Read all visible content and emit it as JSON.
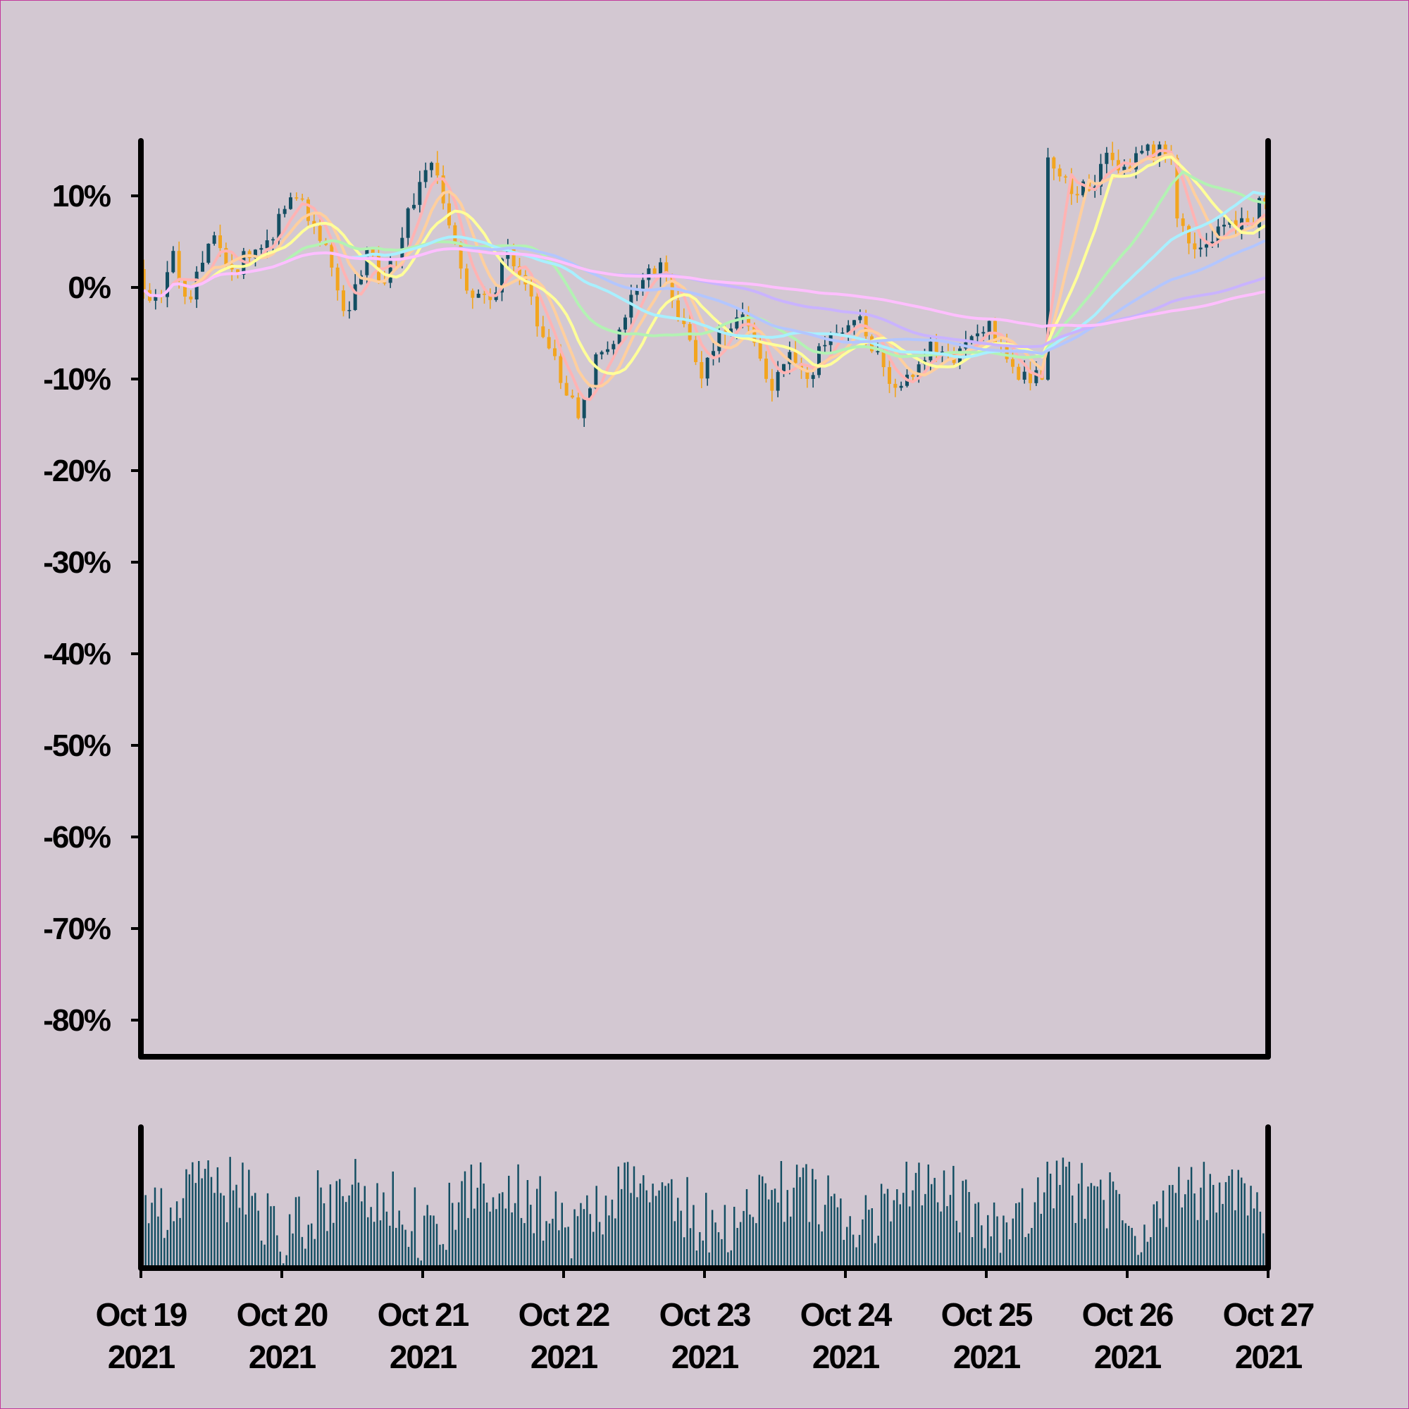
{
  "chart_data": {
    "type": "candlestick",
    "title": "",
    "xlabel": "",
    "ylabel": "",
    "x_range": [
      "2021-10-19T00:00",
      "2021-10-27T00:00"
    ],
    "ylim": [
      -84,
      16
    ],
    "y_ticks": [
      {
        "value": 10,
        "label": "10%"
      },
      {
        "value": 0,
        "label": "0%"
      },
      {
        "value": -10,
        "label": "-10%"
      },
      {
        "value": -20,
        "label": "-20%"
      },
      {
        "value": -30,
        "label": "-30%"
      },
      {
        "value": -40,
        "label": "-40%"
      },
      {
        "value": -50,
        "label": "-50%"
      },
      {
        "value": -60,
        "label": "-60%"
      },
      {
        "value": -70,
        "label": "-70%"
      },
      {
        "value": -80,
        "label": "-80%"
      }
    ],
    "x_ticks": [
      {
        "date": "2021-10-19",
        "line1": "Oct 19",
        "line2": "2021"
      },
      {
        "date": "2021-10-20",
        "line1": "Oct 20",
        "line2": "2021"
      },
      {
        "date": "2021-10-21",
        "line1": "Oct 21",
        "line2": "2021"
      },
      {
        "date": "2021-10-22",
        "line1": "Oct 22",
        "line2": "2021"
      },
      {
        "date": "2021-10-23",
        "line1": "Oct 23",
        "line2": "2021"
      },
      {
        "date": "2021-10-24",
        "line1": "Oct 24",
        "line2": "2021"
      },
      {
        "date": "2021-10-25",
        "line1": "Oct 25",
        "line2": "2021"
      },
      {
        "date": "2021-10-26",
        "line1": "Oct 26",
        "line2": "2021"
      },
      {
        "date": "2021-10-27",
        "line1": "Oct 27",
        "line2": "2021"
      }
    ],
    "price_path": [
      [
        "2021-10-19T00:00",
        2
      ],
      [
        "2021-10-19T03:00",
        -2
      ],
      [
        "2021-10-19T06:00",
        3
      ],
      [
        "2021-10-19T08:30",
        -3
      ],
      [
        "2021-10-19T10:30",
        3
      ],
      [
        "2021-10-19T13:00",
        5
      ],
      [
        "2021-10-19T16:00",
        1
      ],
      [
        "2021-10-19T19:00",
        4
      ],
      [
        "2021-10-19T22:00",
        5
      ],
      [
        "2021-10-20T01:00",
        9
      ],
      [
        "2021-10-20T03:30",
        10
      ],
      [
        "2021-10-20T06:30",
        6
      ],
      [
        "2021-10-20T08:30",
        4
      ],
      [
        "2021-10-20T11:00",
        -3
      ],
      [
        "2021-10-20T13:00",
        0
      ],
      [
        "2021-10-20T15:00",
        4
      ],
      [
        "2021-10-20T18:00",
        0
      ],
      [
        "2021-10-20T21:00",
        6
      ],
      [
        "2021-10-21T00:00",
        11
      ],
      [
        "2021-10-21T02:30",
        14
      ],
      [
        "2021-10-21T04:00",
        10
      ],
      [
        "2021-10-21T07:00",
        1
      ],
      [
        "2021-10-21T10:00",
        -1
      ],
      [
        "2021-10-21T12:00",
        -2
      ],
      [
        "2021-10-21T15:00",
        5
      ],
      [
        "2021-10-21T18:00",
        0
      ],
      [
        "2021-10-21T21:00",
        -5
      ],
      [
        "2021-10-22T00:00",
        -10
      ],
      [
        "2021-10-22T03:00",
        -14
      ],
      [
        "2021-10-22T06:00",
        -8
      ],
      [
        "2021-10-22T09:00",
        -6
      ],
      [
        "2021-10-22T12:00",
        -1
      ],
      [
        "2021-10-22T15:00",
        1
      ],
      [
        "2021-10-22T18:00",
        2
      ],
      [
        "2021-10-22T21:00",
        -5
      ],
      [
        "2021-10-23T00:00",
        -9
      ],
      [
        "2021-10-23T03:00",
        -5
      ],
      [
        "2021-10-23T06:00",
        -3
      ],
      [
        "2021-10-23T09:00",
        -6
      ],
      [
        "2021-10-23T12:00",
        -11
      ],
      [
        "2021-10-23T15:00",
        -8
      ],
      [
        "2021-10-23T18:00",
        -10
      ],
      [
        "2021-10-23T21:00",
        -6
      ],
      [
        "2021-10-24T00:00",
        -4
      ],
      [
        "2021-10-24T03:00",
        -3
      ],
      [
        "2021-10-24T06:00",
        -8
      ],
      [
        "2021-10-24T09:00",
        -12
      ],
      [
        "2021-10-24T12:00",
        -9
      ],
      [
        "2021-10-24T15:00",
        -6
      ],
      [
        "2021-10-24T18:00",
        -8
      ],
      [
        "2021-10-24T21:00",
        -6
      ],
      [
        "2021-10-25T00:00",
        -4
      ],
      [
        "2021-10-25T03:00",
        -6
      ],
      [
        "2021-10-25T06:00",
        -9
      ],
      [
        "2021-10-25T09:00",
        -10
      ],
      [
        "2021-10-25T10:00",
        -9
      ],
      [
        "2021-10-25T10:30",
        15
      ],
      [
        "2021-10-25T13:00",
        12
      ],
      [
        "2021-10-25T16:00",
        10
      ],
      [
        "2021-10-25T18:00",
        11
      ],
      [
        "2021-10-25T21:00",
        14
      ],
      [
        "2021-10-26T00:00",
        13
      ],
      [
        "2021-10-26T03:00",
        15
      ],
      [
        "2021-10-26T06:00",
        15
      ],
      [
        "2021-10-26T08:00",
        14
      ],
      [
        "2021-10-26T09:00",
        7
      ],
      [
        "2021-10-26T12:00",
        5
      ],
      [
        "2021-10-26T15:00",
        6
      ],
      [
        "2021-10-26T18:00",
        8
      ],
      [
        "2021-10-26T21:00",
        6
      ],
      [
        "2021-10-27T00:00",
        10
      ]
    ],
    "candle_interval_minutes": 60,
    "up_color": "#134e62",
    "down_color": "#f2a51f",
    "moving_averages": [
      {
        "window_hours": 5,
        "color": "#ffb3b3"
      },
      {
        "window_hours": 8,
        "color": "#ffcf9e"
      },
      {
        "window_hours": 12,
        "color": "#ffff99"
      },
      {
        "window_hours": 24,
        "color": "#b3f2b3"
      },
      {
        "window_hours": 36,
        "color": "#a8f0ff"
      },
      {
        "window_hours": 54,
        "color": "#b3c6ff"
      },
      {
        "window_hours": 80,
        "color": "#c9b3ff"
      },
      {
        "window_hours": 110,
        "color": "#ffbfff"
      }
    ],
    "volume": {
      "color": "#134e62",
      "interval_minutes": 32,
      "relative_max": 1.0
    },
    "background": "#d3c8d2",
    "frame_color": "#c2389b",
    "grid": false,
    "legend": "none"
  }
}
